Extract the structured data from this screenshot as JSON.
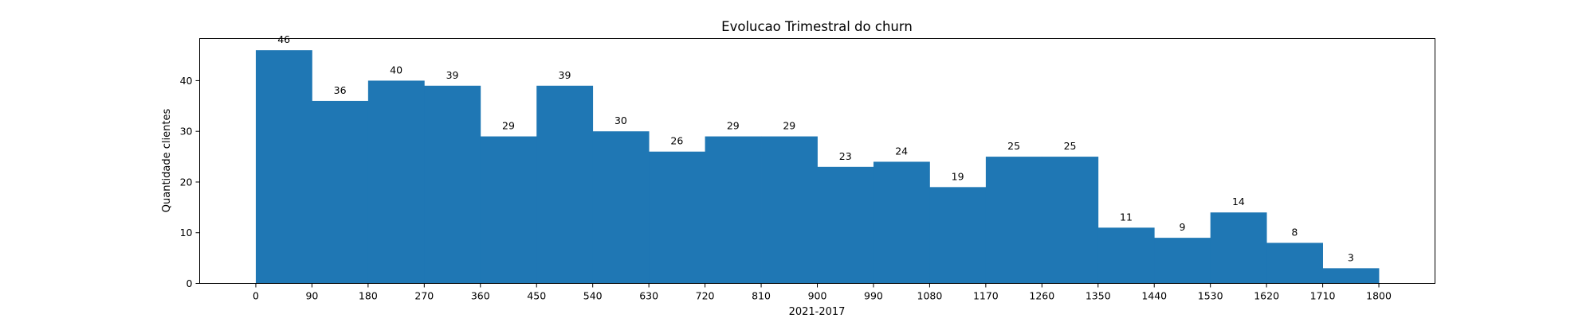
{
  "chart_data": {
    "type": "bar",
    "title": "Evolucao Trimestral do churn",
    "xlabel": "2021-2017",
    "ylabel": "Quantidade clientes",
    "bin_edges": [
      0,
      90,
      180,
      270,
      360,
      450,
      540,
      630,
      720,
      810,
      900,
      990,
      1080,
      1170,
      1260,
      1350,
      1440,
      1530,
      1620,
      1710,
      1800
    ],
    "values": [
      46,
      36,
      40,
      39,
      29,
      39,
      30,
      26,
      29,
      29,
      23,
      24,
      19,
      25,
      25,
      11,
      9,
      14,
      8,
      3
    ],
    "x_ticks": [
      0,
      90,
      180,
      270,
      360,
      450,
      540,
      630,
      720,
      810,
      900,
      990,
      1080,
      1170,
      1260,
      1350,
      1440,
      1530,
      1620,
      1710,
      1800
    ],
    "y_ticks": [
      0,
      10,
      20,
      30,
      40
    ],
    "xlim": [
      -90,
      1890
    ],
    "ylim": [
      0,
      48.3
    ],
    "bar_color": "#1f77b4",
    "grid": false,
    "legend": "none"
  }
}
